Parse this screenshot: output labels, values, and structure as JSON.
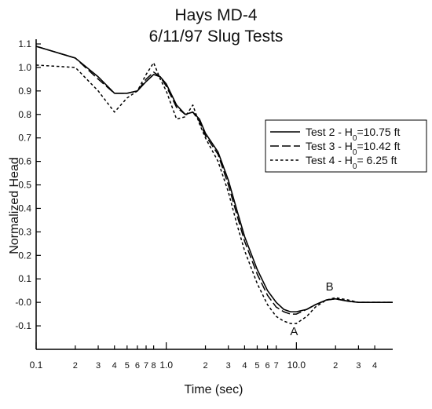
{
  "chart_data": {
    "type": "line",
    "title_lines": [
      "Hays MD-4",
      "6/11/97 Slug Tests"
    ],
    "xlabel": "Time (sec)",
    "ylabel": "Normalized Head",
    "x_scale": "log",
    "xlim": [
      0.1,
      55
    ],
    "ylim": [
      -0.2,
      1.12
    ],
    "grid": false,
    "legend_position": "right-middle",
    "y_ticks": [
      {
        "value": 1.1,
        "label": "1.1"
      },
      {
        "value": 1.0,
        "label": "1.0"
      },
      {
        "value": 0.9,
        "label": "0.9"
      },
      {
        "value": 0.8,
        "label": "0.8"
      },
      {
        "value": 0.7,
        "label": "0.7"
      },
      {
        "value": 0.6,
        "label": "0.6"
      },
      {
        "value": 0.5,
        "label": "0.5"
      },
      {
        "value": 0.4,
        "label": "0.4"
      },
      {
        "value": 0.3,
        "label": "0.3"
      },
      {
        "value": 0.2,
        "label": "0.2"
      },
      {
        "value": 0.1,
        "label": "0.1"
      },
      {
        "value": 0.0,
        "label": "-0.0"
      },
      {
        "value": -0.1,
        "label": "-0.1"
      }
    ],
    "x_ticks": [
      {
        "value": 0.1,
        "label": "0.1",
        "major": true
      },
      {
        "value": 0.2,
        "label": "2",
        "major": false
      },
      {
        "value": 0.3,
        "label": "3",
        "major": false
      },
      {
        "value": 0.4,
        "label": "4",
        "major": false
      },
      {
        "value": 0.5,
        "label": "5",
        "major": false
      },
      {
        "value": 0.6,
        "label": "6",
        "major": false
      },
      {
        "value": 0.7,
        "label": "7",
        "major": false
      },
      {
        "value": 0.8,
        "label": "8",
        "major": false
      },
      {
        "value": 1.0,
        "label": "1.0",
        "major": true
      },
      {
        "value": 2,
        "label": "2",
        "major": false
      },
      {
        "value": 3,
        "label": "3",
        "major": false
      },
      {
        "value": 4,
        "label": "4",
        "major": false
      },
      {
        "value": 5,
        "label": "5",
        "major": false
      },
      {
        "value": 6,
        "label": "6",
        "major": false
      },
      {
        "value": 7,
        "label": "7",
        "major": false
      },
      {
        "value": 10,
        "label": "10.0",
        "major": true
      },
      {
        "value": 20,
        "label": "2",
        "major": false
      },
      {
        "value": 30,
        "label": "3",
        "major": false
      },
      {
        "value": 40,
        "label": "4",
        "major": false
      }
    ],
    "series": [
      {
        "name": "Test 2 - H0=10.75 ft",
        "legend_prefix": "Test 2 - H",
        "legend_sub": "0",
        "legend_suffix": "=10.75 ft",
        "dash": "solid",
        "x": [
          0.1,
          0.2,
          0.3,
          0.4,
          0.5,
          0.6,
          0.7,
          0.8,
          0.9,
          1.0,
          1.2,
          1.4,
          1.6,
          1.8,
          2.0,
          2.5,
          3.0,
          3.5,
          4.0,
          5.0,
          6.0,
          7.0,
          8.0,
          9.0,
          10.0,
          12.0,
          14.0,
          17.0,
          20.0,
          25.0,
          30.0,
          40.0,
          55.0
        ],
        "y": [
          1.09,
          1.04,
          0.96,
          0.89,
          0.89,
          0.9,
          0.94,
          0.97,
          0.96,
          0.93,
          0.84,
          0.8,
          0.81,
          0.78,
          0.72,
          0.64,
          0.52,
          0.39,
          0.28,
          0.14,
          0.05,
          0.0,
          -0.03,
          -0.04,
          -0.04,
          -0.03,
          -0.01,
          0.01,
          0.015,
          0.005,
          0.0,
          0.0,
          0.0
        ]
      },
      {
        "name": "Test 3 - H0=10.42 ft",
        "legend_prefix": "Test 3 - H",
        "legend_sub": "0",
        "legend_suffix": "=10.42 ft",
        "dash": "long-dash",
        "x": [
          0.1,
          0.2,
          0.3,
          0.4,
          0.5,
          0.6,
          0.7,
          0.8,
          0.9,
          1.0,
          1.2,
          1.4,
          1.6,
          1.8,
          2.0,
          2.5,
          3.0,
          3.5,
          4.0,
          5.0,
          6.0,
          7.0,
          8.0,
          9.0,
          10.0,
          12.0,
          14.0,
          17.0,
          20.0,
          25.0,
          30.0,
          40.0,
          55.0
        ],
        "y": [
          1.09,
          1.04,
          0.95,
          0.89,
          0.89,
          0.9,
          0.95,
          0.98,
          0.96,
          0.92,
          0.83,
          0.8,
          0.81,
          0.77,
          0.71,
          0.63,
          0.5,
          0.37,
          0.26,
          0.12,
          0.03,
          -0.02,
          -0.04,
          -0.05,
          -0.05,
          -0.03,
          -0.01,
          0.01,
          0.015,
          0.005,
          0.0,
          0.0,
          0.0
        ]
      },
      {
        "name": "Test 4 - H0= 6.25 ft",
        "legend_prefix": "Test 4 - H",
        "legend_sub": "0",
        "legend_suffix": "= 6.25 ft",
        "dash": "short-dash",
        "x": [
          0.1,
          0.2,
          0.3,
          0.4,
          0.5,
          0.6,
          0.7,
          0.8,
          0.9,
          1.0,
          1.2,
          1.4,
          1.6,
          1.8,
          2.0,
          2.5,
          3.0,
          3.5,
          4.0,
          5.0,
          6.0,
          7.0,
          8.0,
          9.0,
          10.0,
          12.0,
          14.0,
          17.0,
          20.0,
          25.0,
          30.0,
          40.0,
          55.0
        ],
        "y": [
          1.01,
          1.0,
          0.9,
          0.81,
          0.87,
          0.9,
          0.97,
          1.02,
          0.95,
          0.9,
          0.78,
          0.79,
          0.84,
          0.76,
          0.7,
          0.6,
          0.47,
          0.33,
          0.22,
          0.08,
          -0.01,
          -0.06,
          -0.08,
          -0.09,
          -0.09,
          -0.06,
          -0.02,
          0.01,
          0.02,
          0.01,
          0.0,
          0.0,
          0.0
        ]
      }
    ],
    "annotations": [
      {
        "text": "A",
        "x": 9.6,
        "y": -0.14
      },
      {
        "text": "B",
        "x": 18.0,
        "y": 0.05
      }
    ]
  }
}
